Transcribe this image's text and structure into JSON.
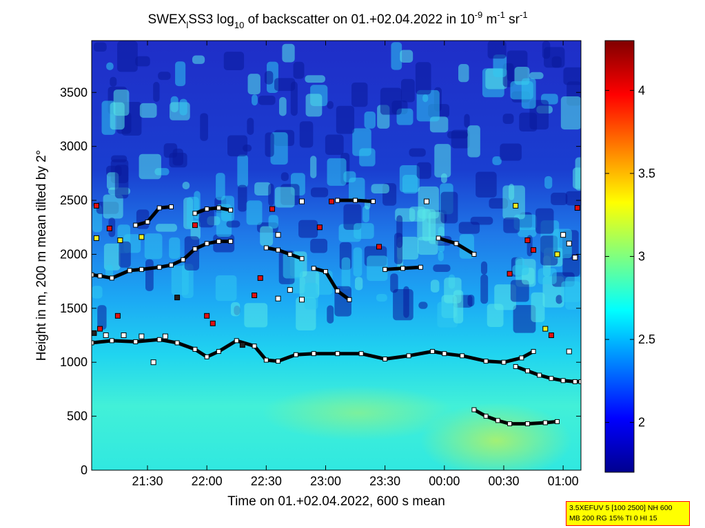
{
  "chart_data": {
    "type": "heatmap",
    "title_parts": {
      "a": "SWEX",
      "a_sub": "l",
      "b": "SS3 log",
      "b_sub": "10",
      "c": " of backscatter on 01.+02.04.2022 in 10",
      "c_sup": "-9",
      "d": " m",
      "d_sup": "-1",
      "e": " sr",
      "e_sup": "-1"
    },
    "xlabel": "Time on 01.+02.04.2022, 600 s mean",
    "ylabel": "Height in m, 200 m mean tilted by 2°",
    "x_range_hours": [
      21.03,
      25.15
    ],
    "x_tick_hours": [
      21.5,
      22.0,
      22.5,
      23.0,
      23.5,
      24.0,
      24.5,
      25.0
    ],
    "x_tick_labels": [
      "21:30",
      "22:00",
      "22:30",
      "23:00",
      "23:30",
      "00:00",
      "00:30",
      "01:00"
    ],
    "ylim": [
      0,
      3980
    ],
    "y_ticks": [
      0,
      500,
      1000,
      1500,
      2000,
      2500,
      3000,
      3500
    ],
    "colorbar": {
      "range": [
        1.7,
        4.3
      ],
      "ticks": [
        2,
        2.5,
        3,
        3.5,
        4
      ],
      "colormap": "jet"
    },
    "boundary_layer": [
      {
        "name": "",
        "x": [
          21.03,
          21.2,
          21.4,
          21.6,
          21.75,
          21.9,
          22.0,
          22.1,
          22.25,
          22.4,
          22.5,
          22.6,
          22.75,
          22.9,
          23.1,
          23.3,
          23.5,
          23.7,
          23.9,
          24.0,
          24.15,
          24.35,
          24.5,
          24.65,
          24.75
        ],
        "y": [
          1180,
          1200,
          1190,
          1210,
          1180,
          1120,
          1050,
          1100,
          1200,
          1150,
          1020,
          1010,
          1070,
          1080,
          1080,
          1080,
          1030,
          1060,
          1100,
          1080,
          1060,
          1010,
          1000,
          1040,
          1100
        ]
      },
      {
        "name": "",
        "x": [
          24.6,
          24.7,
          24.8,
          24.9,
          25.0,
          25.1,
          25.15
        ],
        "y": [
          960,
          920,
          880,
          850,
          830,
          820,
          820
        ]
      },
      {
        "name": "",
        "x": [
          24.25,
          24.35,
          24.45,
          24.55,
          24.7,
          24.85,
          24.95
        ],
        "y": [
          560,
          500,
          460,
          430,
          430,
          440,
          450
        ]
      }
    ],
    "cloud_layer": [
      {
        "name": "",
        "x": [
          21.03,
          21.1,
          21.2,
          21.35,
          21.45,
          21.6,
          21.7,
          21.8,
          21.9,
          22.0,
          22.1,
          22.2
        ],
        "y": [
          1810,
          1800,
          1780,
          1850,
          1860,
          1880,
          1900,
          1950,
          2050,
          2100,
          2120,
          2120
        ]
      },
      {
        "name": "",
        "x": [
          21.4,
          21.5,
          21.6,
          21.7
        ],
        "y": [
          2270,
          2300,
          2430,
          2440
        ]
      },
      {
        "name": "",
        "x": [
          21.9,
          22.0,
          22.1,
          22.2
        ],
        "y": [
          2380,
          2420,
          2430,
          2410
        ]
      },
      {
        "name": "",
        "x": [
          22.5,
          22.6,
          22.7,
          22.8
        ],
        "y": [
          2060,
          2040,
          2000,
          1960
        ]
      },
      {
        "name": "",
        "x": [
          23.1,
          23.25,
          23.4
        ],
        "y": [
          2500,
          2500,
          2490
        ]
      },
      {
        "name": "",
        "x": [
          23.5,
          23.65,
          23.8
        ],
        "y": [
          1860,
          1870,
          1880
        ]
      },
      {
        "name": "",
        "x": [
          23.95,
          24.1,
          24.25
        ],
        "y": [
          2150,
          2100,
          2000
        ]
      },
      {
        "name": "",
        "x": [
          22.9,
          23.0,
          23.1,
          23.2
        ],
        "y": [
          1870,
          1840,
          1660,
          1580
        ]
      }
    ],
    "cloud_bases_scatter": [
      {
        "x": 21.05,
        "y": 1270,
        "c": "dark"
      },
      {
        "x": 21.1,
        "y": 1310,
        "c": "red"
      },
      {
        "x": 21.15,
        "y": 1250,
        "c": "white"
      },
      {
        "x": 21.25,
        "y": 1430,
        "c": "red"
      },
      {
        "x": 21.3,
        "y": 1250,
        "c": "white"
      },
      {
        "x": 21.45,
        "y": 1240,
        "c": "white"
      },
      {
        "x": 21.55,
        "y": 1000,
        "c": "white"
      },
      {
        "x": 21.65,
        "y": 1240,
        "c": "white"
      },
      {
        "x": 21.75,
        "y": 1600,
        "c": "dark"
      },
      {
        "x": 22.0,
        "y": 1430,
        "c": "red"
      },
      {
        "x": 22.05,
        "y": 1360,
        "c": "red"
      },
      {
        "x": 22.3,
        "y": 1160,
        "c": "dark"
      },
      {
        "x": 22.4,
        "y": 1620,
        "c": "red"
      },
      {
        "x": 22.45,
        "y": 1780,
        "c": "red"
      },
      {
        "x": 22.6,
        "y": 1590,
        "c": "white"
      },
      {
        "x": 22.7,
        "y": 1670,
        "c": "white"
      },
      {
        "x": 22.8,
        "y": 1580,
        "c": "white"
      },
      {
        "x": 21.07,
        "y": 2450,
        "c": "red"
      },
      {
        "x": 21.07,
        "y": 2150,
        "c": "yellow"
      },
      {
        "x": 21.18,
        "y": 2240,
        "c": "red"
      },
      {
        "x": 21.27,
        "y": 2130,
        "c": "yellow"
      },
      {
        "x": 21.45,
        "y": 2160,
        "c": "yellow"
      },
      {
        "x": 21.9,
        "y": 2270,
        "c": "red"
      },
      {
        "x": 22.55,
        "y": 2420,
        "c": "red"
      },
      {
        "x": 22.6,
        "y": 2180,
        "c": "white"
      },
      {
        "x": 22.8,
        "y": 2490,
        "c": "white"
      },
      {
        "x": 23.05,
        "y": 2490,
        "c": "red"
      },
      {
        "x": 22.95,
        "y": 2250,
        "c": "red"
      },
      {
        "x": 23.45,
        "y": 2070,
        "c": "red"
      },
      {
        "x": 23.85,
        "y": 2490,
        "c": "white"
      },
      {
        "x": 24.55,
        "y": 1820,
        "c": "red"
      },
      {
        "x": 24.6,
        "y": 2450,
        "c": "yellow"
      },
      {
        "x": 24.7,
        "y": 2130,
        "c": "red"
      },
      {
        "x": 24.75,
        "y": 2040,
        "c": "red"
      },
      {
        "x": 24.85,
        "y": 1310,
        "c": "yellow"
      },
      {
        "x": 24.9,
        "y": 1250,
        "c": "red"
      },
      {
        "x": 24.95,
        "y": 2000,
        "c": "yellow"
      },
      {
        "x": 25.0,
        "y": 2180,
        "c": "white"
      },
      {
        "x": 25.05,
        "y": 1100,
        "c": "white"
      },
      {
        "x": 25.1,
        "y": 1970,
        "c": "white"
      },
      {
        "x": 25.12,
        "y": 2430,
        "c": "red"
      },
      {
        "x": 25.05,
        "y": 2100,
        "c": "white"
      }
    ]
  },
  "info_box": {
    "line1": "3.5XEFUV 5 [100 2500] NH 600",
    "line2": "MB 200 RG 15% TI 0 HI 15"
  }
}
